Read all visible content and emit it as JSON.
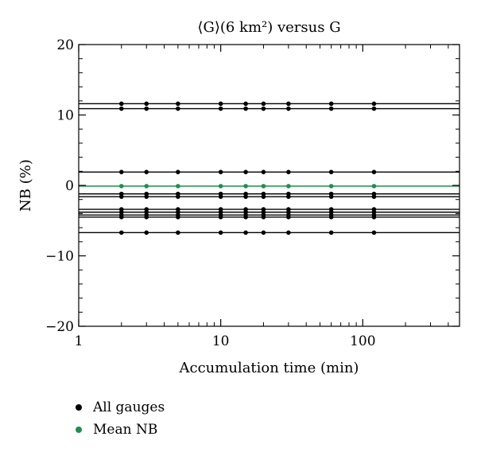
{
  "chart_data": {
    "type": "line",
    "title": "⟨G⟩(6 km²) versus G",
    "xlabel": "Accumulation time (min)",
    "ylabel": "NB (%)",
    "xscale": "log",
    "xlim": [
      1,
      480
    ],
    "ylim": [
      -20,
      20
    ],
    "xticks": [
      1,
      10,
      100
    ],
    "yticks": [
      -20,
      -10,
      0,
      10,
      20
    ],
    "x": [
      1,
      2,
      3,
      5,
      10,
      15,
      20,
      30,
      60,
      120,
      480
    ],
    "grid": false,
    "legend_position": "bottom-left",
    "series": [
      {
        "group": "all",
        "values": [
          11.6,
          11.6,
          11.6,
          11.6,
          11.6,
          11.6,
          11.6,
          11.6,
          11.6,
          11.6,
          11.6
        ]
      },
      {
        "group": "all",
        "values": [
          10.9,
          10.9,
          10.9,
          10.9,
          10.9,
          10.9,
          10.9,
          10.9,
          10.9,
          10.9,
          10.9
        ]
      },
      {
        "group": "all",
        "values": [
          1.9,
          1.9,
          1.9,
          1.9,
          1.9,
          1.9,
          1.9,
          1.9,
          1.9,
          1.9,
          1.9
        ]
      },
      {
        "group": "all",
        "values": [
          -1.2,
          -1.2,
          -1.2,
          -1.2,
          -1.2,
          -1.2,
          -1.2,
          -1.2,
          -1.2,
          -1.2,
          -1.2
        ]
      },
      {
        "group": "all",
        "values": [
          -1.6,
          -1.6,
          -1.6,
          -1.6,
          -1.6,
          -1.6,
          -1.6,
          -1.6,
          -1.6,
          -1.6,
          -1.6
        ]
      },
      {
        "group": "all",
        "values": [
          -3.4,
          -3.4,
          -3.4,
          -3.4,
          -3.4,
          -3.4,
          -3.4,
          -3.4,
          -3.4,
          -3.4,
          -3.4
        ]
      },
      {
        "group": "all",
        "values": [
          -3.8,
          -3.8,
          -3.8,
          -3.8,
          -3.8,
          -3.8,
          -3.8,
          -3.8,
          -3.8,
          -3.8,
          -3.8
        ]
      },
      {
        "group": "all",
        "values": [
          -4.2,
          -4.2,
          -4.2,
          -4.2,
          -4.2,
          -4.2,
          -4.2,
          -4.2,
          -4.2,
          -4.2,
          -4.2
        ]
      },
      {
        "group": "all",
        "values": [
          -4.5,
          -4.5,
          -4.5,
          -4.5,
          -4.5,
          -4.5,
          -4.5,
          -4.5,
          -4.5,
          -4.5,
          -4.5
        ]
      },
      {
        "group": "all",
        "values": [
          -6.7,
          -6.7,
          -6.7,
          -6.7,
          -6.7,
          -6.7,
          -6.7,
          -6.7,
          -6.7,
          -6.7,
          -6.7
        ]
      },
      {
        "group": "mean",
        "values": [
          -0.1,
          -0.1,
          -0.1,
          -0.1,
          -0.1,
          -0.1,
          -0.1,
          -0.1,
          -0.1,
          -0.1,
          -0.1
        ]
      }
    ],
    "legend": [
      {
        "label": "All gauges",
        "color": "#000000"
      },
      {
        "label": "Mean NB",
        "color": "#1f8f4e"
      }
    ]
  }
}
